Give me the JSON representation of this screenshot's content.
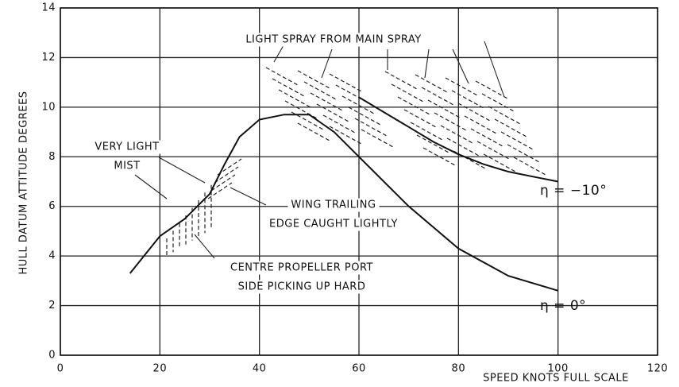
{
  "chart_data": {
    "type": "line",
    "x_label": "SPEED KNOTS FULL SCALE",
    "y_label": "HULL DATUM ATTITUDE DEGREES",
    "xlim": [
      0,
      120
    ],
    "xticks": [
      0,
      20,
      40,
      60,
      80,
      100,
      120
    ],
    "ylim": [
      0,
      14
    ],
    "yticks": [
      0,
      2,
      4,
      6,
      8,
      10,
      12,
      14
    ],
    "grid": true,
    "series": [
      {
        "name": "η = 0°",
        "color": "#111111",
        "x": [
          14,
          20,
          25,
          30,
          33,
          36,
          40,
          45,
          50,
          55,
          60,
          70,
          80,
          90,
          100
        ],
        "values": [
          3.3,
          4.8,
          5.5,
          6.5,
          7.7,
          8.8,
          9.5,
          9.7,
          9.7,
          9.0,
          8.0,
          6.0,
          4.3,
          3.2,
          2.6
        ]
      },
      {
        "name": "η = −10°",
        "color": "#111111",
        "x": [
          60,
          65,
          70,
          75,
          80,
          85,
          90,
          95,
          100
        ],
        "values": [
          10.4,
          9.8,
          9.2,
          8.6,
          8.1,
          7.7,
          7.4,
          7.2,
          7.0
        ]
      }
    ],
    "annotations": [
      {
        "lines": [
          "LIGHT SPRAY FROM MAIN SPRAY"
        ]
      },
      {
        "lines": [
          "VERY LIGHT",
          "MIST"
        ]
      },
      {
        "lines": [
          "WING TRAILING",
          "EDGE CAUGHT LIGHTLY"
        ]
      },
      {
        "lines": [
          "CENTRE PROPELLER PORT",
          "SIDE PICKING UP HARD"
        ]
      }
    ]
  }
}
